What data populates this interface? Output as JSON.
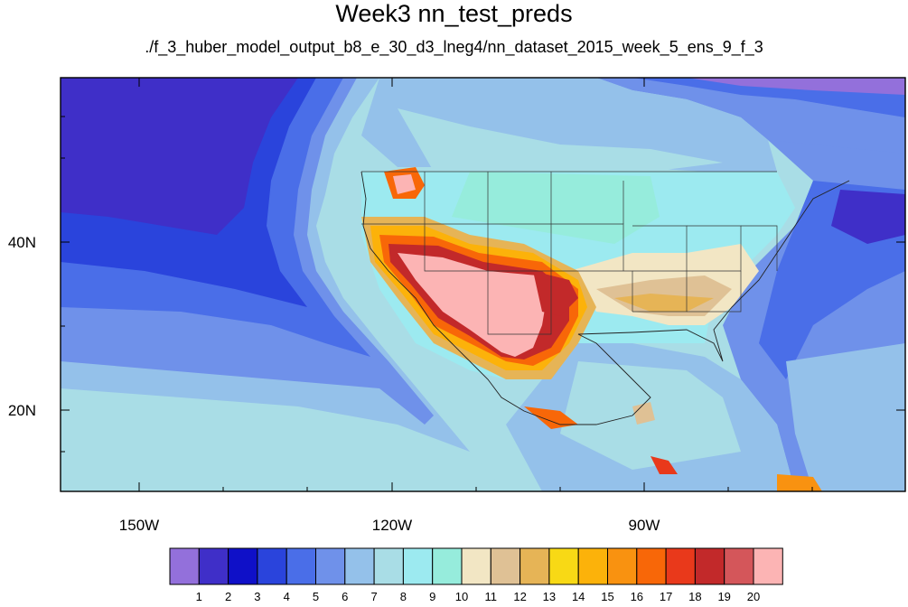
{
  "title": "Week3 nn_test_preds",
  "subtitle": "./f_3_huber_model_output_b8_e_30_d3_lneg4/nn_dataset_2015_week_5_ens_9_f_3",
  "lat_labels": [
    "40N",
    "20N"
  ],
  "lon_labels": [
    "150W",
    "120W",
    "90W"
  ],
  "colorbar": {
    "labels": [
      "1",
      "2",
      "3",
      "4",
      "5",
      "6",
      "7",
      "8",
      "9",
      "10",
      "11",
      "12",
      "13",
      "14",
      "15",
      "16",
      "17",
      "18",
      "19",
      "20"
    ],
    "colors": [
      "#9370db",
      "#3f2fc8",
      "#0f10c8",
      "#2a44dc",
      "#4a6ee8",
      "#6f91ea",
      "#94c1ea",
      "#a9dde6",
      "#9ceaf0",
      "#96ecdc",
      "#f2e6c4",
      "#dfc195",
      "#e6b456",
      "#f8d915",
      "#fcb20a",
      "#f99210",
      "#f86708",
      "#e9391b",
      "#c2292a",
      "#d4565a",
      "#fcb4b4"
    ]
  }
}
